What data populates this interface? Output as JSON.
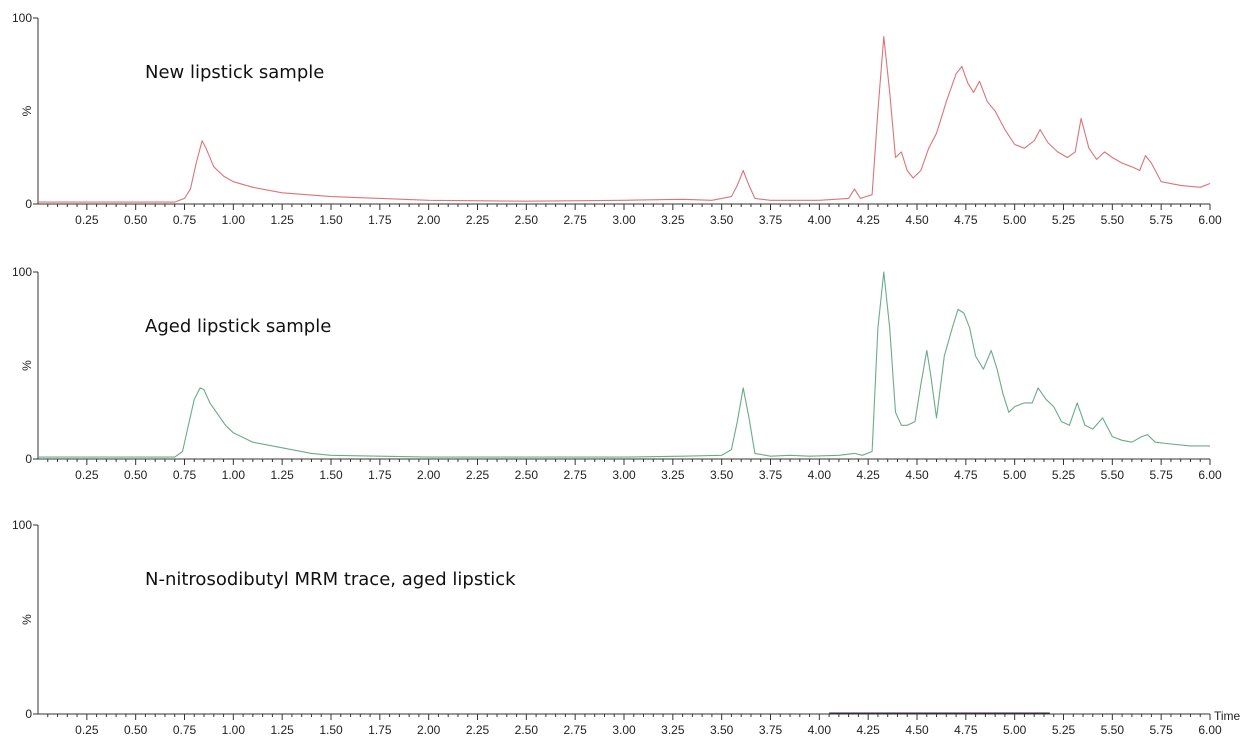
{
  "chart_data": [
    {
      "type": "line",
      "title": "New lipstick sample",
      "xlabel": "",
      "ylabel": "%",
      "xlim": [
        0,
        6.0
      ],
      "ylim": [
        0,
        100
      ],
      "y_ticks": [
        "0",
        "100"
      ],
      "x_ticks": [
        "0.25",
        "0.50",
        "0.75",
        "1.00",
        "1.25",
        "1.50",
        "1.75",
        "2.00",
        "2.25",
        "2.50",
        "2.75",
        "3.00",
        "3.25",
        "3.50",
        "3.75",
        "4.00",
        "4.25",
        "4.50",
        "4.75",
        "5.00",
        "5.25",
        "5.50",
        "5.75",
        "6.00"
      ],
      "color": "#d9757a",
      "series": [
        {
          "x": [
            0.0,
            0.7,
            0.75,
            0.78,
            0.81,
            0.84,
            0.86,
            0.9,
            0.95,
            1.0,
            1.1,
            1.25,
            1.5,
            1.75,
            2.0,
            2.5,
            3.0,
            3.3,
            3.45,
            3.55,
            3.58,
            3.61,
            3.64,
            3.67,
            3.75,
            4.0,
            4.15,
            4.18,
            4.21,
            4.27,
            4.3,
            4.33,
            4.36,
            4.39,
            4.42,
            4.45,
            4.48,
            4.52,
            4.56,
            4.6,
            4.65,
            4.7,
            4.73,
            4.76,
            4.79,
            4.82,
            4.86,
            4.9,
            4.95,
            5.0,
            5.05,
            5.1,
            5.13,
            5.17,
            5.22,
            5.27,
            5.31,
            5.34,
            5.38,
            5.42,
            5.46,
            5.5,
            5.55,
            5.6,
            5.64,
            5.67,
            5.7,
            5.75,
            5.85,
            5.95,
            6.0
          ],
          "y": [
            1,
            1,
            3,
            8,
            22,
            34,
            30,
            20,
            15,
            12,
            9,
            6,
            4,
            3,
            2,
            1.5,
            2,
            2.5,
            2,
            4,
            10,
            18,
            10,
            3,
            2,
            2,
            3,
            8,
            3,
            5,
            50,
            90,
            60,
            25,
            28,
            18,
            14,
            18,
            30,
            38,
            55,
            70,
            74,
            65,
            60,
            66,
            55,
            50,
            40,
            32,
            30,
            34,
            40,
            33,
            28,
            25,
            28,
            46,
            30,
            24,
            28,
            25,
            22,
            20,
            18,
            26,
            22,
            12,
            10,
            9,
            11
          ]
        }
      ]
    },
    {
      "type": "line",
      "title": "Aged lipstick sample",
      "xlabel": "",
      "ylabel": "%",
      "xlim": [
        0,
        6.0
      ],
      "ylim": [
        0,
        100
      ],
      "y_ticks": [
        "0",
        "100"
      ],
      "x_ticks": [
        "0.25",
        "0.50",
        "0.75",
        "1.00",
        "1.25",
        "1.50",
        "1.75",
        "2.00",
        "2.25",
        "2.50",
        "2.75",
        "3.00",
        "3.25",
        "3.50",
        "3.75",
        "4.00",
        "4.25",
        "4.50",
        "4.75",
        "5.00",
        "5.25",
        "5.50",
        "5.75",
        "6.00"
      ],
      "color": "#6aab8a",
      "series": [
        {
          "x": [
            0.0,
            0.7,
            0.74,
            0.77,
            0.8,
            0.83,
            0.85,
            0.88,
            0.92,
            0.96,
            1.0,
            1.1,
            1.25,
            1.4,
            1.5,
            1.75,
            2.0,
            2.5,
            3.0,
            3.3,
            3.5,
            3.55,
            3.58,
            3.61,
            3.64,
            3.67,
            3.75,
            3.85,
            3.95,
            4.1,
            4.18,
            4.22,
            4.27,
            4.3,
            4.33,
            4.36,
            4.39,
            4.42,
            4.45,
            4.49,
            4.52,
            4.55,
            4.57,
            4.6,
            4.64,
            4.68,
            4.71,
            4.74,
            4.77,
            4.8,
            4.84,
            4.88,
            4.91,
            4.94,
            4.97,
            5.0,
            5.05,
            5.09,
            5.12,
            5.16,
            5.2,
            5.24,
            5.28,
            5.32,
            5.36,
            5.4,
            5.45,
            5.5,
            5.55,
            5.6,
            5.65,
            5.68,
            5.72,
            5.8,
            5.9,
            6.0
          ],
          "y": [
            1,
            1,
            4,
            18,
            32,
            38,
            37,
            30,
            24,
            18,
            14,
            9,
            6,
            3,
            2,
            1.5,
            1,
            1,
            1,
            1.5,
            2,
            5,
            20,
            38,
            22,
            3,
            1.5,
            2,
            1.5,
            2,
            3,
            2,
            4,
            70,
            100,
            70,
            25,
            18,
            18,
            20,
            40,
            58,
            45,
            22,
            55,
            70,
            80,
            78,
            70,
            55,
            48,
            58,
            48,
            35,
            25,
            28,
            30,
            30,
            38,
            32,
            28,
            20,
            18,
            30,
            18,
            16,
            22,
            12,
            10,
            9,
            12,
            13,
            9,
            8,
            7,
            7
          ]
        }
      ]
    },
    {
      "type": "line",
      "title": "N-nitrosodibutyl MRM trace, aged lipstick",
      "xlabel": "Time",
      "ylabel": "%",
      "xlim": [
        0,
        6.0
      ],
      "ylim": [
        0,
        100
      ],
      "y_ticks": [
        "0",
        "100"
      ],
      "x_ticks": [
        "0.25",
        "0.50",
        "0.75",
        "1.00",
        "1.25",
        "1.50",
        "1.75",
        "2.00",
        "2.25",
        "2.50",
        "2.75",
        "3.00",
        "3.25",
        "3.50",
        "3.75",
        "4.00",
        "4.25",
        "4.50",
        "4.75",
        "5.00",
        "5.25",
        "5.50",
        "5.75",
        "6.00"
      ],
      "color": "#3a2a3a",
      "series": [
        {
          "x": [
            4.05,
            5.18
          ],
          "y": [
            0.5,
            0.5
          ]
        }
      ]
    }
  ]
}
